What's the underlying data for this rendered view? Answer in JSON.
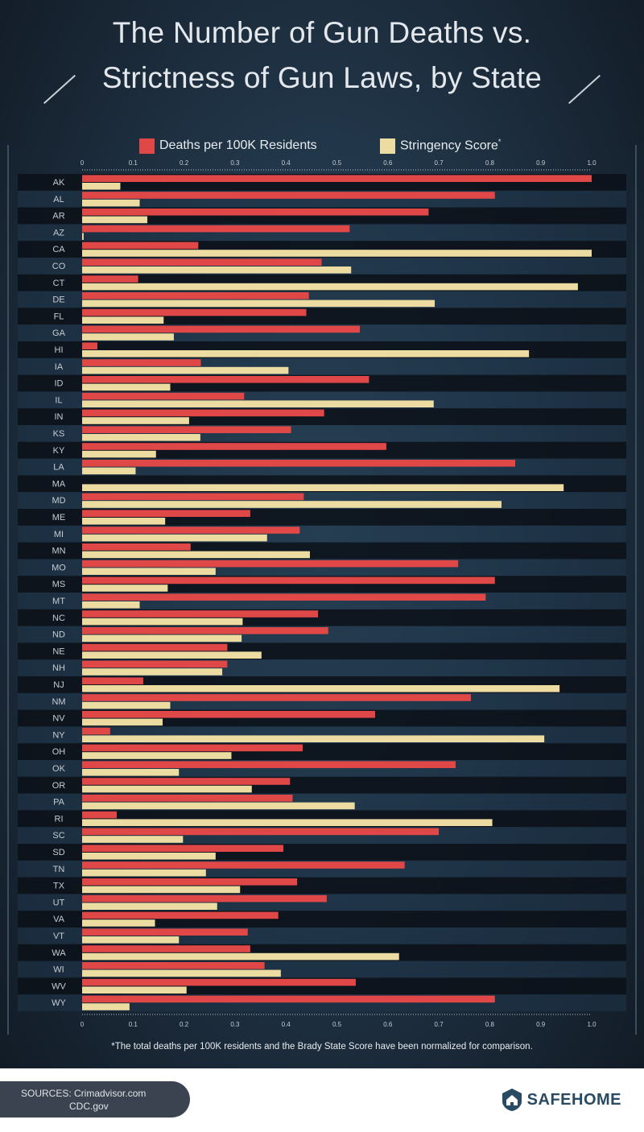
{
  "title": {
    "line1": "The Number of Gun Deaths vs.",
    "line2": "Strictness of Gun Laws, by State"
  },
  "legend": [
    {
      "label": "Deaths per 100K Residents",
      "color": "#e04848"
    },
    {
      "label": "Stringency Score",
      "sup": "*",
      "color": "#eddca1"
    }
  ],
  "footnote": "*The total deaths per 100K residents and the Brady State Score have been normalized for comparison.",
  "sources": {
    "line1": "SOURCES: Crimadvisor.com",
    "line2": "CDC.gov"
  },
  "brand": "SAFEHOME",
  "colors": {
    "deaths": "#e04848",
    "stringency": "#eddca1",
    "row_dark": "#0c121a",
    "row_light": "#1f3448"
  },
  "chart_data": {
    "type": "bar",
    "orientation": "horizontal",
    "xlim": [
      0,
      1.0
    ],
    "x_ticks": [
      "0",
      "0.1",
      "0.2",
      "0.3",
      "0.4",
      "0.5",
      "0.6",
      "0.7",
      "0.8",
      "0.9",
      "1.0"
    ],
    "categories": [
      "AK",
      "AL",
      "AR",
      "AZ",
      "CA",
      "CO",
      "CT",
      "DE",
      "FL",
      "GA",
      "HI",
      "IA",
      "ID",
      "IL",
      "IN",
      "KS",
      "KY",
      "LA",
      "MA",
      "MD",
      "ME",
      "MI",
      "MN",
      "MO",
      "MS",
      "MT",
      "NC",
      "ND",
      "NE",
      "NH",
      "NJ",
      "NM",
      "NV",
      "NY",
      "OH",
      "OK",
      "OR",
      "PA",
      "RI",
      "SC",
      "SD",
      "TN",
      "TX",
      "UT",
      "VA",
      "VT",
      "WA",
      "WI",
      "WV",
      "WY"
    ],
    "series": [
      {
        "name": "Deaths per 100K Residents",
        "values": [
          1.0,
          0.81,
          0.68,
          0.525,
          0.228,
          0.47,
          0.11,
          0.445,
          0.44,
          0.545,
          0.03,
          0.233,
          0.563,
          0.318,
          0.475,
          0.41,
          0.597,
          0.85,
          0.0,
          0.435,
          0.33,
          0.427,
          0.213,
          0.738,
          0.81,
          0.792,
          0.463,
          0.483,
          0.285,
          0.285,
          0.12,
          0.763,
          0.575,
          0.055,
          0.433,
          0.733,
          0.408,
          0.413,
          0.068,
          0.7,
          0.395,
          0.633,
          0.422,
          0.48,
          0.385,
          0.325,
          0.33,
          0.358,
          0.537,
          0.81
        ]
      },
      {
        "name": "Stringency Score",
        "values": [
          0.075,
          0.113,
          0.128,
          0.003,
          1.0,
          0.528,
          0.973,
          0.692,
          0.16,
          0.18,
          0.877,
          0.405,
          0.173,
          0.69,
          0.21,
          0.232,
          0.145,
          0.105,
          0.945,
          0.823,
          0.163,
          0.363,
          0.447,
          0.262,
          0.168,
          0.113,
          0.315,
          0.313,
          0.352,
          0.275,
          0.937,
          0.173,
          0.158,
          0.907,
          0.293,
          0.19,
          0.333,
          0.535,
          0.805,
          0.198,
          0.262,
          0.243,
          0.31,
          0.265,
          0.143,
          0.19,
          0.622,
          0.39,
          0.205,
          0.093
        ]
      }
    ]
  }
}
